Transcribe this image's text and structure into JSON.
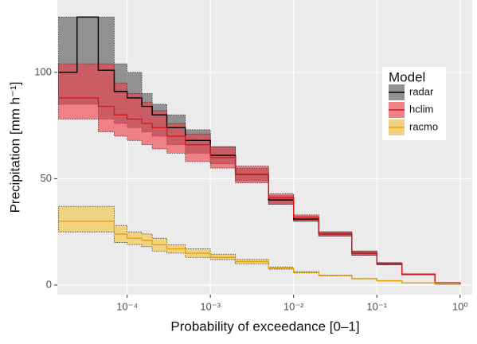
{
  "chart_data": {
    "type": "step-ribbon",
    "x_label": "Probability of exceedance [0–1]",
    "y_label": "Precipitation [mm h⁻¹]",
    "x_scale": "log",
    "xlim": [
      1.45e-05,
      1.4
    ],
    "ylim": [
      -4.5,
      134
    ],
    "xticks": [
      {
        "value": 0.0001,
        "label": "10⁻⁴"
      },
      {
        "value": 0.001,
        "label": "10⁻³"
      },
      {
        "value": 0.01,
        "label": "10⁻²"
      },
      {
        "value": 0.1,
        "label": "10⁻¹"
      },
      {
        "value": 1,
        "label": "10⁰"
      }
    ],
    "yticks": [
      0,
      50,
      100
    ],
    "grid": true,
    "legend_title": "Model",
    "legend_position": "right",
    "x": [
      1.5e-05,
      2.5e-05,
      4.5e-05,
      7e-05,
      0.0001,
      0.00015,
      0.0002,
      0.0003,
      0.0005,
      0.001,
      0.002,
      0.005,
      0.01,
      0.02,
      0.05,
      0.1,
      0.2,
      0.5,
      1
    ],
    "series": [
      {
        "name": "radar",
        "color": "#000000",
        "fill": "#555555",
        "values": [
          100,
          126,
          101,
          91,
          88,
          84,
          80,
          74,
          68,
          61,
          52,
          40,
          31,
          24,
          15,
          10,
          5,
          1,
          0
        ],
        "lower": [
          85,
          85,
          78,
          76,
          74,
          72,
          70,
          66,
          62,
          57,
          49,
          38,
          30,
          23,
          14,
          9.5,
          4.8,
          0.9,
          0
        ],
        "upper": [
          126,
          126,
          126,
          104,
          100,
          90,
          85,
          80,
          73,
          65,
          55,
          42,
          32,
          25,
          16,
          10.5,
          5.2,
          1.1,
          0
        ]
      },
      {
        "name": "hclim",
        "color": "#d7191c",
        "fill": "#ee3b45",
        "values": [
          88,
          88,
          84,
          80,
          78,
          76,
          74,
          70,
          66,
          60,
          52,
          41,
          32,
          24,
          15,
          10,
          5,
          1,
          0
        ],
        "lower": [
          78,
          78,
          72,
          70,
          68,
          66,
          64,
          62,
          58,
          55,
          48,
          38,
          30,
          23,
          14,
          9.5,
          4.8,
          0.9,
          0
        ],
        "upper": [
          104,
          104,
          104,
          95,
          90,
          86,
          82,
          76,
          71,
          65,
          56,
          43,
          33,
          25,
          16,
          10.5,
          5.2,
          1.1,
          0
        ]
      },
      {
        "name": "racmo",
        "color": "#e8a400",
        "fill": "#f5c23e",
        "values": [
          30,
          30,
          30,
          24,
          22,
          21,
          19,
          17,
          15,
          13,
          11,
          8,
          6,
          4.5,
          3,
          2,
          1,
          0.3,
          0
        ],
        "lower": [
          25,
          25,
          25,
          20,
          19,
          18,
          16,
          15,
          13,
          12,
          10,
          7.5,
          5.7,
          4.3,
          2.9,
          1.9,
          0.95,
          0.28,
          0
        ],
        "upper": [
          37,
          37,
          37,
          28,
          25,
          24,
          22,
          19,
          17,
          14.5,
          12,
          8.5,
          6.3,
          4.7,
          3.1,
          2.1,
          1.05,
          0.32,
          0
        ]
      }
    ]
  }
}
